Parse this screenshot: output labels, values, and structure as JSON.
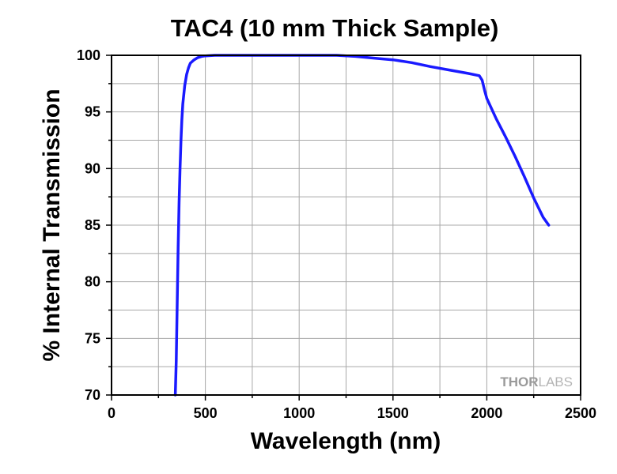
{
  "chart_data": {
    "type": "line",
    "title": "TAC4 (10 mm Thick Sample)",
    "xlabel": "Wavelength (nm)",
    "ylabel": "% Internal Transmission",
    "xlim": [
      0,
      2500
    ],
    "ylim": [
      70,
      100
    ],
    "xticks": [
      0,
      500,
      1000,
      1500,
      2000,
      2500
    ],
    "yticks": [
      70,
      75,
      80,
      85,
      90,
      95,
      100
    ],
    "grid": true,
    "series": [
      {
        "color": "#1a1aff",
        "x": [
          340,
          345,
          350,
          355,
          360,
          365,
          370,
          375,
          380,
          390,
          400,
          410,
          420,
          440,
          460,
          480,
          500,
          550,
          600,
          800,
          1000,
          1200,
          1300,
          1400,
          1500,
          1600,
          1700,
          1800,
          1900,
          1960,
          1975,
          1990,
          2000,
          2050,
          2100,
          2150,
          2200,
          2250,
          2300,
          2330
        ],
        "y": [
          70,
          73,
          78,
          83,
          87,
          90,
          92.5,
          94.3,
          95.7,
          97.3,
          98.3,
          98.9,
          99.3,
          99.6,
          99.8,
          99.9,
          99.95,
          100,
          100,
          100,
          100,
          100,
          99.9,
          99.75,
          99.6,
          99.35,
          99.0,
          98.7,
          98.4,
          98.2,
          97.8,
          96.8,
          96.2,
          94.4,
          92.8,
          91.1,
          89.3,
          87.4,
          85.7,
          85.0
        ]
      }
    ]
  },
  "watermark": {
    "part1": "THOR",
    "part2": "LABS"
  }
}
